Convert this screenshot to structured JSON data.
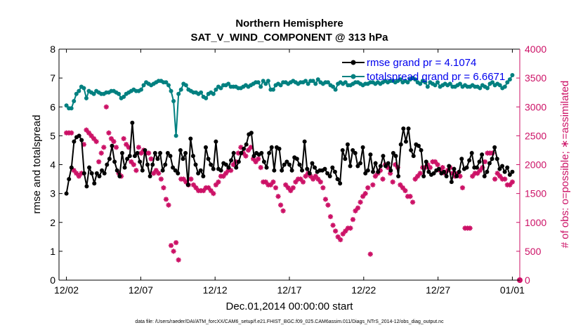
{
  "chart_data": {
    "type": "line",
    "title": "Northern Hemisphere",
    "subtitle": "SAT_V_WIND_COMPONENT @ 313 hPa",
    "xlabel": "Dec.01,2014 00:00:00 start",
    "ylabel_left": "rmse and totalspread",
    "ylabel_right": "# of obs: o=possible; ∗=assimilated",
    "footnote": "data file: /Users/raeder/DAI/ATM_forcXX/CAM6_setup/f.e21.FHIST_BGC.f09_025.CAM6assim.011/Diags_NTrS_2014-12/obs_diag_output.nc",
    "x_tick_labels": [
      "12/02",
      "12/07",
      "12/12",
      "12/17",
      "12/22",
      "12/27",
      "01/01"
    ],
    "x_tick_days": [
      1,
      6,
      11,
      16,
      21,
      26,
      31
    ],
    "xlim": [
      0.5,
      31.5
    ],
    "ylim_left": [
      0,
      8
    ],
    "left_ticks": [
      0,
      1,
      2,
      3,
      4,
      5,
      6,
      7,
      8
    ],
    "ylim_right": [
      0,
      4000
    ],
    "right_ticks": [
      0,
      500,
      1000,
      1500,
      2000,
      2500,
      3000,
      3500,
      4000
    ],
    "colors": {
      "rmse": "#000000",
      "spread": "#008080",
      "obs": "#cc1166",
      "right_axis": "#cc1166"
    },
    "legend": [
      {
        "name": "rmse",
        "label": "rmse grand pr = 4.1074"
      },
      {
        "name": "totalspread",
        "label": "totalspread grand pr = 6.6671"
      }
    ],
    "series": [
      {
        "name": "rmse",
        "axis": "left",
        "values": [
          3.0,
          3.5,
          3.9,
          4.8,
          4.95,
          5.0,
          4.85,
          3.7,
          3.25,
          3.9,
          3.7,
          3.35,
          3.7,
          3.6,
          3.8,
          3.7,
          4.0,
          4.2,
          4.65,
          4.1,
          3.8,
          3.6,
          4.4,
          3.9,
          4.2,
          4.3,
          5.45,
          4.3,
          4.4,
          4.1,
          3.8,
          4.5,
          4.0,
          3.6,
          4.0,
          4.4,
          4.2,
          4.4,
          3.8,
          4.0,
          4.4,
          4.3,
          3.9,
          3.8,
          3.7,
          4.5,
          4.2,
          4.4,
          3.3,
          4.9,
          4.3,
          4.0,
          3.7,
          3.8,
          3.6,
          4.6,
          4.2,
          4.0,
          3.85,
          4.8,
          3.85,
          3.8,
          4.05,
          4.0,
          3.9,
          4.15,
          4.4,
          3.9,
          4.1,
          4.4,
          4.55,
          4.7,
          5.05,
          5.1,
          4.3,
          4.4,
          4.35,
          4.4,
          4.1,
          3.9,
          4.4,
          4.6,
          3.8,
          4.6,
          4.55,
          3.8,
          4.0,
          4.1,
          4.0,
          3.8,
          4.25,
          4.2,
          4.0,
          3.8,
          4.8,
          3.85,
          3.7,
          4.05,
          3.9,
          3.75,
          3.8,
          3.8,
          3.85,
          3.7,
          3.6,
          3.9,
          3.75,
          3.5,
          3.35,
          4.5,
          4.2,
          4.7,
          3.95,
          4.5,
          4.4,
          3.95,
          4.05,
          4.6,
          3.7,
          3.8,
          4.35,
          3.75,
          4.05,
          3.75,
          3.95,
          4.3,
          3.95,
          4.05,
          3.8,
          4.4,
          4.3,
          3.6,
          4.7,
          5.25,
          4.8,
          5.25,
          4.5,
          4.3,
          4.7,
          4.65,
          4.5,
          3.6,
          4.1,
          3.75,
          3.65,
          3.7,
          3.8,
          3.85,
          3.7,
          3.75,
          3.6,
          3.95,
          3.4,
          3.85,
          3.6,
          3.75,
          4.2,
          3.85,
          3.9,
          4.15,
          4.4,
          3.9,
          3.9,
          4.1,
          4.35,
          3.6,
          3.75,
          4.05,
          4.2,
          4.6,
          4.2,
          3.85,
          3.95,
          3.75,
          3.9,
          3.65,
          3.75
        ]
      },
      {
        "name": "totalspread",
        "axis": "left",
        "values": [
          6.05,
          5.95,
          5.95,
          6.2,
          6.45,
          6.55,
          6.7,
          6.65,
          6.3,
          6.55,
          6.5,
          6.45,
          6.55,
          6.5,
          6.45,
          6.45,
          6.5,
          6.5,
          6.55,
          6.55,
          6.5,
          6.45,
          6.3,
          6.35,
          6.45,
          6.5,
          6.55,
          6.6,
          6.55,
          6.55,
          6.6,
          6.75,
          6.85,
          6.8,
          6.75,
          6.8,
          6.85,
          6.9,
          6.9,
          6.85,
          6.85,
          6.75,
          6.55,
          6.2,
          5.0,
          6.45,
          6.6,
          6.8,
          6.75,
          6.6,
          6.55,
          6.5,
          6.5,
          6.45,
          6.5,
          6.35,
          6.3,
          6.45,
          6.5,
          6.45,
          6.6,
          6.7,
          6.65,
          6.75,
          6.75,
          6.8,
          6.7,
          6.7,
          6.7,
          6.65,
          6.65,
          6.7,
          6.75,
          6.7,
          6.75,
          6.8,
          6.85,
          6.85,
          6.7,
          6.9,
          6.8,
          6.9,
          6.6,
          6.6,
          6.75,
          6.8,
          6.75,
          6.85,
          6.85,
          6.8,
          6.85,
          6.9,
          6.85,
          6.8,
          6.85,
          6.85,
          6.9,
          6.8,
          6.9,
          6.9,
          6.8,
          6.95,
          6.85,
          6.8,
          6.85,
          6.85,
          6.75,
          6.7,
          6.6,
          6.8,
          6.85,
          6.8,
          6.85,
          6.75,
          6.75,
          6.8,
          6.85,
          6.85,
          6.8,
          6.75,
          6.8,
          6.8,
          6.85,
          6.85,
          6.8,
          6.85,
          6.8,
          6.85,
          6.9,
          6.85,
          6.9,
          6.9,
          6.85,
          6.9,
          6.95,
          6.85,
          6.9,
          6.85,
          6.95,
          7.0,
          6.95,
          6.85,
          6.8,
          6.9,
          6.85,
          6.7,
          6.85,
          6.8,
          6.75,
          6.85,
          6.7,
          6.75,
          6.8,
          6.75,
          6.8,
          6.7,
          6.7,
          6.75,
          6.8,
          6.7,
          6.75,
          6.7,
          6.7,
          6.75,
          6.7,
          6.7,
          6.65,
          6.75,
          6.7,
          6.65,
          6.8,
          6.85,
          6.75,
          6.8,
          6.75,
          6.65,
          6.7,
          6.85,
          6.95,
          7.1
        ]
      },
      {
        "name": "obs_assimilated",
        "axis": "right",
        "marker": "asterisk",
        "values": [
          2550,
          2550,
          2550,
          1900,
          1850,
          1800,
          1850,
          2350,
          2600,
          2550,
          2500,
          2450,
          2400,
          2050,
          2200,
          2300,
          3000,
          2550,
          2450,
          2400,
          2300,
          1850,
          1800,
          2450,
          2350,
          2300,
          2050,
          2000,
          1900,
          2300,
          2200,
          2250,
          2200,
          2200,
          2100,
          1850,
          1900,
          1850,
          1750,
          1600,
          1400,
          1300,
          600,
          500,
          650,
          350,
          1750,
          1750,
          1700,
          1650,
          1750,
          1650,
          1600,
          1550,
          1550,
          1550,
          1600,
          1600,
          1550,
          1500,
          1650,
          1700,
          1800,
          1800,
          1850,
          1900,
          1900,
          2000,
          2050,
          2200,
          2300,
          2200,
          2150,
          2250,
          2300,
          2100,
          2050,
          2100,
          1950,
          1700,
          1700,
          1650,
          1650,
          1700,
          1600,
          1450,
          1300,
          1200,
          1650,
          1600,
          1550,
          1600,
          1700,
          1750,
          1750,
          1700,
          1800,
          1850,
          1800,
          1750,
          1800,
          1750,
          1700,
          1600,
          1400,
          1300,
          1100,
          950,
          850,
          750,
          700,
          800,
          850,
          900,
          900,
          1050,
          1200,
          1250,
          1350,
          1450,
          1500,
          1600,
          450,
          1650,
          1800,
          1850,
          1900,
          1750,
          2000,
          1950,
          1850,
          1700,
          2000,
          1950,
          1650,
          1600,
          1550,
          1450,
          1450,
          1350,
          1750,
          1800,
          1850,
          1950,
          1950,
          2000,
          1950,
          2050,
          2050,
          2000,
          1900,
          1950,
          1850,
          1900,
          1950,
          1850,
          1800,
          1850,
          1800,
          1600,
          900,
          900,
          900,
          1800,
          1850,
          1850,
          1900,
          1950,
          2050,
          2200,
          2200,
          2200,
          1750,
          1850,
          1800,
          1750,
          1750,
          1650,
          1650,
          1700
        ]
      },
      {
        "name": "obs_possible",
        "axis": "right",
        "marker": "circle",
        "values": [
          0
        ]
      }
    ]
  }
}
